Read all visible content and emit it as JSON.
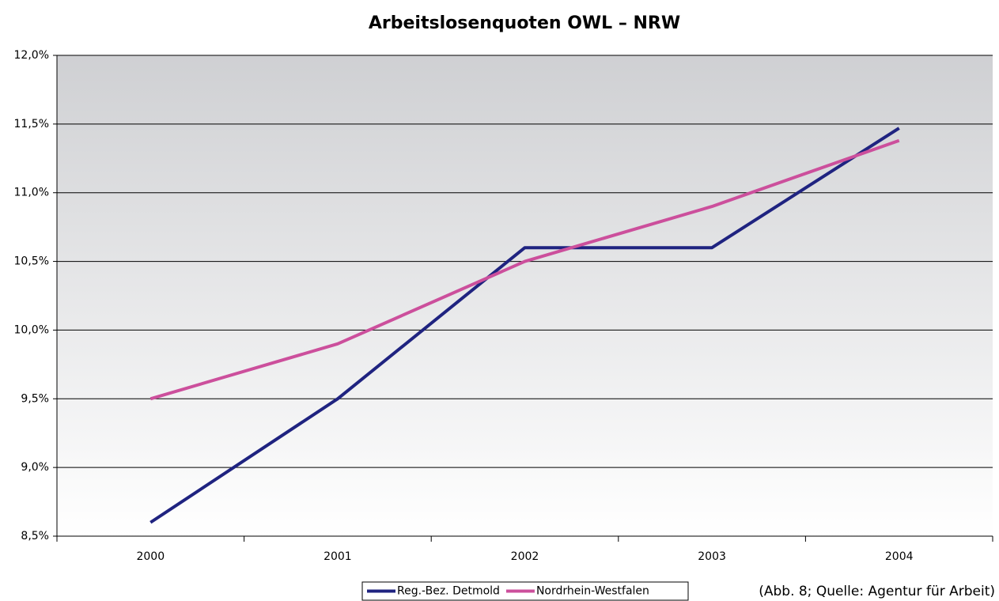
{
  "chart_data": {
    "type": "line",
    "title": "Arbeitslosenquoten OWL – NRW",
    "categories": [
      "2000",
      "2001",
      "2002",
      "2003",
      "2004"
    ],
    "series": [
      {
        "name": "Reg.-Bez. Detmold",
        "color": "#1f2380",
        "values": [
          8.6,
          9.5,
          10.6,
          10.6,
          11.47
        ]
      },
      {
        "name": "Nordrhein-Westfalen",
        "color": "#cc4f9c",
        "values": [
          9.5,
          9.9,
          10.5,
          10.9,
          11.38
        ]
      }
    ],
    "ylim": [
      8.5,
      12.0
    ],
    "yticks": [
      {
        "value": 8.5,
        "label": "8,5%"
      },
      {
        "value": 9.0,
        "label": "9,0%"
      },
      {
        "value": 9.5,
        "label": "9,5%"
      },
      {
        "value": 10.0,
        "label": "10,0%"
      },
      {
        "value": 10.5,
        "label": "10,5%"
      },
      {
        "value": 11.0,
        "label": "11,0%"
      },
      {
        "value": 11.5,
        "label": "11,5%"
      },
      {
        "value": 12.0,
        "label": "12,0%"
      }
    ],
    "grid": true,
    "legend": "bottom",
    "annotation": "(Abb. 8; Quelle: Agentur für Arbeit)"
  }
}
